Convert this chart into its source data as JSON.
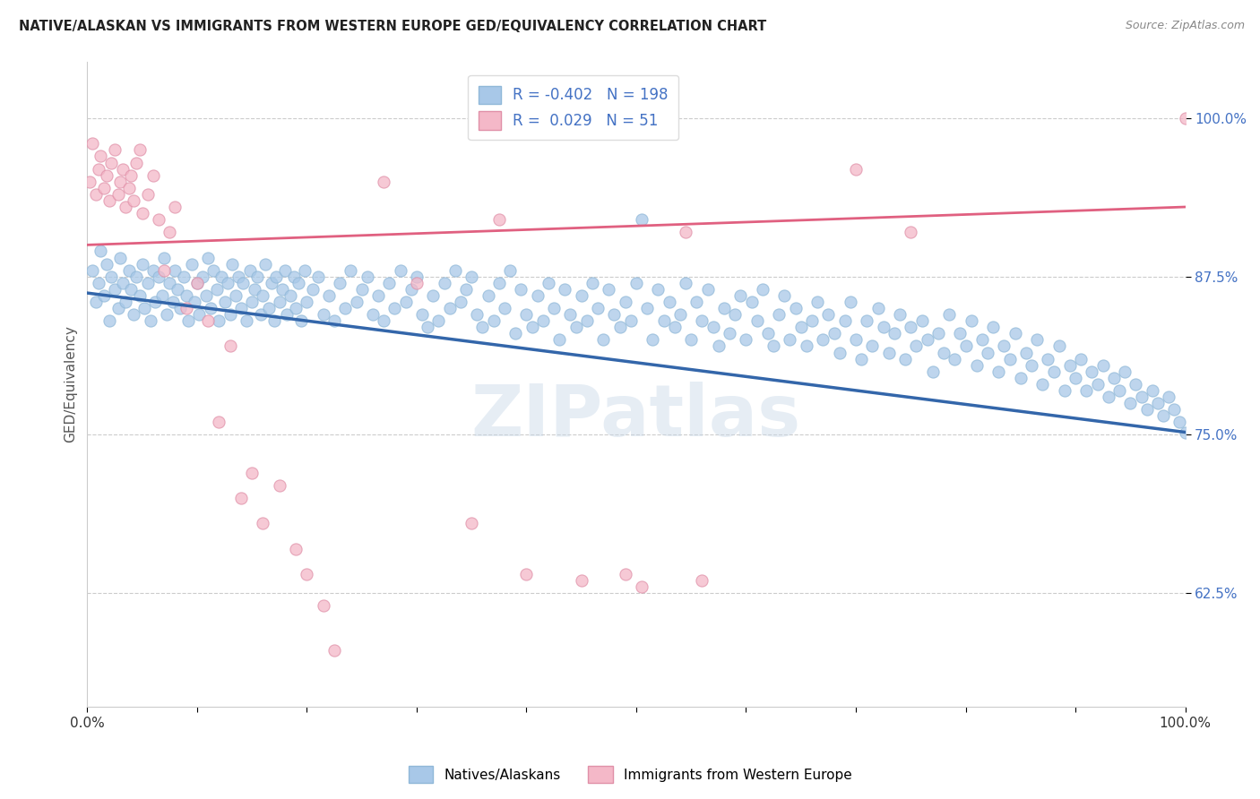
{
  "title": "NATIVE/ALASKAN VS IMMIGRANTS FROM WESTERN EUROPE GED/EQUIVALENCY CORRELATION CHART",
  "source": "Source: ZipAtlas.com",
  "ylabel": "GED/Equivalency",
  "xlim": [
    0.0,
    1.0
  ],
  "ylim": [
    0.535,
    1.045
  ],
  "yticks": [
    0.625,
    0.75,
    0.875,
    1.0
  ],
  "ytick_labels": [
    "62.5%",
    "75.0%",
    "87.5%",
    "100.0%"
  ],
  "xticks": [
    0.0,
    0.1,
    0.2,
    0.3,
    0.4,
    0.5,
    0.6,
    0.7,
    0.8,
    0.9,
    1.0
  ],
  "xtick_labels": [
    "0.0%",
    "",
    "",
    "",
    "",
    "",
    "",
    "",
    "",
    "",
    "100.0%"
  ],
  "blue_R": -0.402,
  "blue_N": 198,
  "pink_R": 0.029,
  "pink_N": 51,
  "blue_color": "#a8c8e8",
  "pink_color": "#f4b8c8",
  "blue_line_color": "#3366aa",
  "pink_line_color": "#e06080",
  "background_color": "#ffffff",
  "watermark": "ZIPatlas",
  "blue_trend_start_y": 0.862,
  "blue_trend_end_y": 0.752,
  "pink_trend_start_y": 0.9,
  "pink_trend_end_y": 0.93,
  "blue_dots": [
    [
      0.005,
      0.88
    ],
    [
      0.008,
      0.855
    ],
    [
      0.01,
      0.87
    ],
    [
      0.012,
      0.895
    ],
    [
      0.015,
      0.86
    ],
    [
      0.018,
      0.885
    ],
    [
      0.02,
      0.84
    ],
    [
      0.022,
      0.875
    ],
    [
      0.025,
      0.865
    ],
    [
      0.028,
      0.85
    ],
    [
      0.03,
      0.89
    ],
    [
      0.032,
      0.87
    ],
    [
      0.035,
      0.855
    ],
    [
      0.038,
      0.88
    ],
    [
      0.04,
      0.865
    ],
    [
      0.042,
      0.845
    ],
    [
      0.045,
      0.875
    ],
    [
      0.048,
      0.86
    ],
    [
      0.05,
      0.885
    ],
    [
      0.052,
      0.85
    ],
    [
      0.055,
      0.87
    ],
    [
      0.058,
      0.84
    ],
    [
      0.06,
      0.88
    ],
    [
      0.062,
      0.855
    ],
    [
      0.065,
      0.875
    ],
    [
      0.068,
      0.86
    ],
    [
      0.07,
      0.89
    ],
    [
      0.072,
      0.845
    ],
    [
      0.075,
      0.87
    ],
    [
      0.078,
      0.855
    ],
    [
      0.08,
      0.88
    ],
    [
      0.082,
      0.865
    ],
    [
      0.085,
      0.85
    ],
    [
      0.088,
      0.875
    ],
    [
      0.09,
      0.86
    ],
    [
      0.092,
      0.84
    ],
    [
      0.095,
      0.885
    ],
    [
      0.098,
      0.855
    ],
    [
      0.1,
      0.87
    ],
    [
      0.102,
      0.845
    ],
    [
      0.105,
      0.875
    ],
    [
      0.108,
      0.86
    ],
    [
      0.11,
      0.89
    ],
    [
      0.112,
      0.85
    ],
    [
      0.115,
      0.88
    ],
    [
      0.118,
      0.865
    ],
    [
      0.12,
      0.84
    ],
    [
      0.122,
      0.875
    ],
    [
      0.125,
      0.855
    ],
    [
      0.128,
      0.87
    ],
    [
      0.13,
      0.845
    ],
    [
      0.132,
      0.885
    ],
    [
      0.135,
      0.86
    ],
    [
      0.138,
      0.875
    ],
    [
      0.14,
      0.85
    ],
    [
      0.142,
      0.87
    ],
    [
      0.145,
      0.84
    ],
    [
      0.148,
      0.88
    ],
    [
      0.15,
      0.855
    ],
    [
      0.152,
      0.865
    ],
    [
      0.155,
      0.875
    ],
    [
      0.158,
      0.845
    ],
    [
      0.16,
      0.86
    ],
    [
      0.162,
      0.885
    ],
    [
      0.165,
      0.85
    ],
    [
      0.168,
      0.87
    ],
    [
      0.17,
      0.84
    ],
    [
      0.172,
      0.875
    ],
    [
      0.175,
      0.855
    ],
    [
      0.178,
      0.865
    ],
    [
      0.18,
      0.88
    ],
    [
      0.182,
      0.845
    ],
    [
      0.185,
      0.86
    ],
    [
      0.188,
      0.875
    ],
    [
      0.19,
      0.85
    ],
    [
      0.192,
      0.87
    ],
    [
      0.195,
      0.84
    ],
    [
      0.198,
      0.88
    ],
    [
      0.2,
      0.855
    ],
    [
      0.205,
      0.865
    ],
    [
      0.21,
      0.875
    ],
    [
      0.215,
      0.845
    ],
    [
      0.22,
      0.86
    ],
    [
      0.225,
      0.84
    ],
    [
      0.23,
      0.87
    ],
    [
      0.235,
      0.85
    ],
    [
      0.24,
      0.88
    ],
    [
      0.245,
      0.855
    ],
    [
      0.25,
      0.865
    ],
    [
      0.255,
      0.875
    ],
    [
      0.26,
      0.845
    ],
    [
      0.265,
      0.86
    ],
    [
      0.27,
      0.84
    ],
    [
      0.275,
      0.87
    ],
    [
      0.28,
      0.85
    ],
    [
      0.285,
      0.88
    ],
    [
      0.29,
      0.855
    ],
    [
      0.295,
      0.865
    ],
    [
      0.3,
      0.875
    ],
    [
      0.305,
      0.845
    ],
    [
      0.31,
      0.835
    ],
    [
      0.315,
      0.86
    ],
    [
      0.32,
      0.84
    ],
    [
      0.325,
      0.87
    ],
    [
      0.33,
      0.85
    ],
    [
      0.335,
      0.88
    ],
    [
      0.34,
      0.855
    ],
    [
      0.345,
      0.865
    ],
    [
      0.35,
      0.875
    ],
    [
      0.355,
      0.845
    ],
    [
      0.36,
      0.835
    ],
    [
      0.365,
      0.86
    ],
    [
      0.37,
      0.84
    ],
    [
      0.375,
      0.87
    ],
    [
      0.38,
      0.85
    ],
    [
      0.385,
      0.88
    ],
    [
      0.39,
      0.83
    ],
    [
      0.395,
      0.865
    ],
    [
      0.4,
      0.845
    ],
    [
      0.405,
      0.835
    ],
    [
      0.41,
      0.86
    ],
    [
      0.415,
      0.84
    ],
    [
      0.42,
      0.87
    ],
    [
      0.425,
      0.85
    ],
    [
      0.43,
      0.825
    ],
    [
      0.435,
      0.865
    ],
    [
      0.44,
      0.845
    ],
    [
      0.445,
      0.835
    ],
    [
      0.45,
      0.86
    ],
    [
      0.455,
      0.84
    ],
    [
      0.46,
      0.87
    ],
    [
      0.465,
      0.85
    ],
    [
      0.47,
      0.825
    ],
    [
      0.475,
      0.865
    ],
    [
      0.48,
      0.845
    ],
    [
      0.485,
      0.835
    ],
    [
      0.49,
      0.855
    ],
    [
      0.495,
      0.84
    ],
    [
      0.5,
      0.87
    ],
    [
      0.505,
      0.92
    ],
    [
      0.51,
      0.85
    ],
    [
      0.515,
      0.825
    ],
    [
      0.52,
      0.865
    ],
    [
      0.525,
      0.84
    ],
    [
      0.53,
      0.855
    ],
    [
      0.535,
      0.835
    ],
    [
      0.54,
      0.845
    ],
    [
      0.545,
      0.87
    ],
    [
      0.55,
      0.825
    ],
    [
      0.555,
      0.855
    ],
    [
      0.56,
      0.84
    ],
    [
      0.565,
      0.865
    ],
    [
      0.57,
      0.835
    ],
    [
      0.575,
      0.82
    ],
    [
      0.58,
      0.85
    ],
    [
      0.585,
      0.83
    ],
    [
      0.59,
      0.845
    ],
    [
      0.595,
      0.86
    ],
    [
      0.6,
      0.825
    ],
    [
      0.605,
      0.855
    ],
    [
      0.61,
      0.84
    ],
    [
      0.615,
      0.865
    ],
    [
      0.62,
      0.83
    ],
    [
      0.625,
      0.82
    ],
    [
      0.63,
      0.845
    ],
    [
      0.635,
      0.86
    ],
    [
      0.64,
      0.825
    ],
    [
      0.645,
      0.85
    ],
    [
      0.65,
      0.835
    ],
    [
      0.655,
      0.82
    ],
    [
      0.66,
      0.84
    ],
    [
      0.665,
      0.855
    ],
    [
      0.67,
      0.825
    ],
    [
      0.675,
      0.845
    ],
    [
      0.68,
      0.83
    ],
    [
      0.685,
      0.815
    ],
    [
      0.69,
      0.84
    ],
    [
      0.695,
      0.855
    ],
    [
      0.7,
      0.825
    ],
    [
      0.705,
      0.81
    ],
    [
      0.71,
      0.84
    ],
    [
      0.715,
      0.82
    ],
    [
      0.72,
      0.85
    ],
    [
      0.725,
      0.835
    ],
    [
      0.73,
      0.815
    ],
    [
      0.735,
      0.83
    ],
    [
      0.74,
      0.845
    ],
    [
      0.745,
      0.81
    ],
    [
      0.75,
      0.835
    ],
    [
      0.755,
      0.82
    ],
    [
      0.76,
      0.84
    ],
    [
      0.765,
      0.825
    ],
    [
      0.77,
      0.8
    ],
    [
      0.775,
      0.83
    ],
    [
      0.78,
      0.815
    ],
    [
      0.785,
      0.845
    ],
    [
      0.79,
      0.81
    ],
    [
      0.795,
      0.83
    ],
    [
      0.8,
      0.82
    ],
    [
      0.805,
      0.84
    ],
    [
      0.81,
      0.805
    ],
    [
      0.815,
      0.825
    ],
    [
      0.82,
      0.815
    ],
    [
      0.825,
      0.835
    ],
    [
      0.83,
      0.8
    ],
    [
      0.835,
      0.82
    ],
    [
      0.84,
      0.81
    ],
    [
      0.845,
      0.83
    ],
    [
      0.85,
      0.795
    ],
    [
      0.855,
      0.815
    ],
    [
      0.86,
      0.805
    ],
    [
      0.865,
      0.825
    ],
    [
      0.87,
      0.79
    ],
    [
      0.875,
      0.81
    ],
    [
      0.88,
      0.8
    ],
    [
      0.885,
      0.82
    ],
    [
      0.89,
      0.785
    ],
    [
      0.895,
      0.805
    ],
    [
      0.9,
      0.795
    ],
    [
      0.905,
      0.81
    ],
    [
      0.91,
      0.785
    ],
    [
      0.915,
      0.8
    ],
    [
      0.92,
      0.79
    ],
    [
      0.925,
      0.805
    ],
    [
      0.93,
      0.78
    ],
    [
      0.935,
      0.795
    ],
    [
      0.94,
      0.785
    ],
    [
      0.945,
      0.8
    ],
    [
      0.95,
      0.775
    ],
    [
      0.955,
      0.79
    ],
    [
      0.96,
      0.78
    ],
    [
      0.965,
      0.77
    ],
    [
      0.97,
      0.785
    ],
    [
      0.975,
      0.775
    ],
    [
      0.98,
      0.765
    ],
    [
      0.985,
      0.78
    ],
    [
      0.99,
      0.77
    ],
    [
      0.995,
      0.76
    ],
    [
      1.0,
      0.752
    ]
  ],
  "pink_dots": [
    [
      0.002,
      0.95
    ],
    [
      0.005,
      0.98
    ],
    [
      0.008,
      0.94
    ],
    [
      0.01,
      0.96
    ],
    [
      0.012,
      0.97
    ],
    [
      0.015,
      0.945
    ],
    [
      0.018,
      0.955
    ],
    [
      0.02,
      0.935
    ],
    [
      0.022,
      0.965
    ],
    [
      0.025,
      0.975
    ],
    [
      0.028,
      0.94
    ],
    [
      0.03,
      0.95
    ],
    [
      0.032,
      0.96
    ],
    [
      0.035,
      0.93
    ],
    [
      0.038,
      0.945
    ],
    [
      0.04,
      0.955
    ],
    [
      0.042,
      0.935
    ],
    [
      0.045,
      0.965
    ],
    [
      0.048,
      0.975
    ],
    [
      0.05,
      0.925
    ],
    [
      0.055,
      0.94
    ],
    [
      0.06,
      0.955
    ],
    [
      0.065,
      0.92
    ],
    [
      0.07,
      0.88
    ],
    [
      0.075,
      0.91
    ],
    [
      0.08,
      0.93
    ],
    [
      0.09,
      0.85
    ],
    [
      0.1,
      0.87
    ],
    [
      0.11,
      0.84
    ],
    [
      0.12,
      0.76
    ],
    [
      0.13,
      0.82
    ],
    [
      0.14,
      0.7
    ],
    [
      0.15,
      0.72
    ],
    [
      0.16,
      0.68
    ],
    [
      0.175,
      0.71
    ],
    [
      0.19,
      0.66
    ],
    [
      0.2,
      0.64
    ],
    [
      0.215,
      0.615
    ],
    [
      0.225,
      0.58
    ],
    [
      0.27,
      0.95
    ],
    [
      0.3,
      0.87
    ],
    [
      0.35,
      0.68
    ],
    [
      0.375,
      0.92
    ],
    [
      0.4,
      0.64
    ],
    [
      0.45,
      0.635
    ],
    [
      0.49,
      0.64
    ],
    [
      0.505,
      0.63
    ],
    [
      0.545,
      0.91
    ],
    [
      0.56,
      0.635
    ],
    [
      0.7,
      0.96
    ],
    [
      0.75,
      0.91
    ],
    [
      1.0,
      1.0
    ]
  ]
}
